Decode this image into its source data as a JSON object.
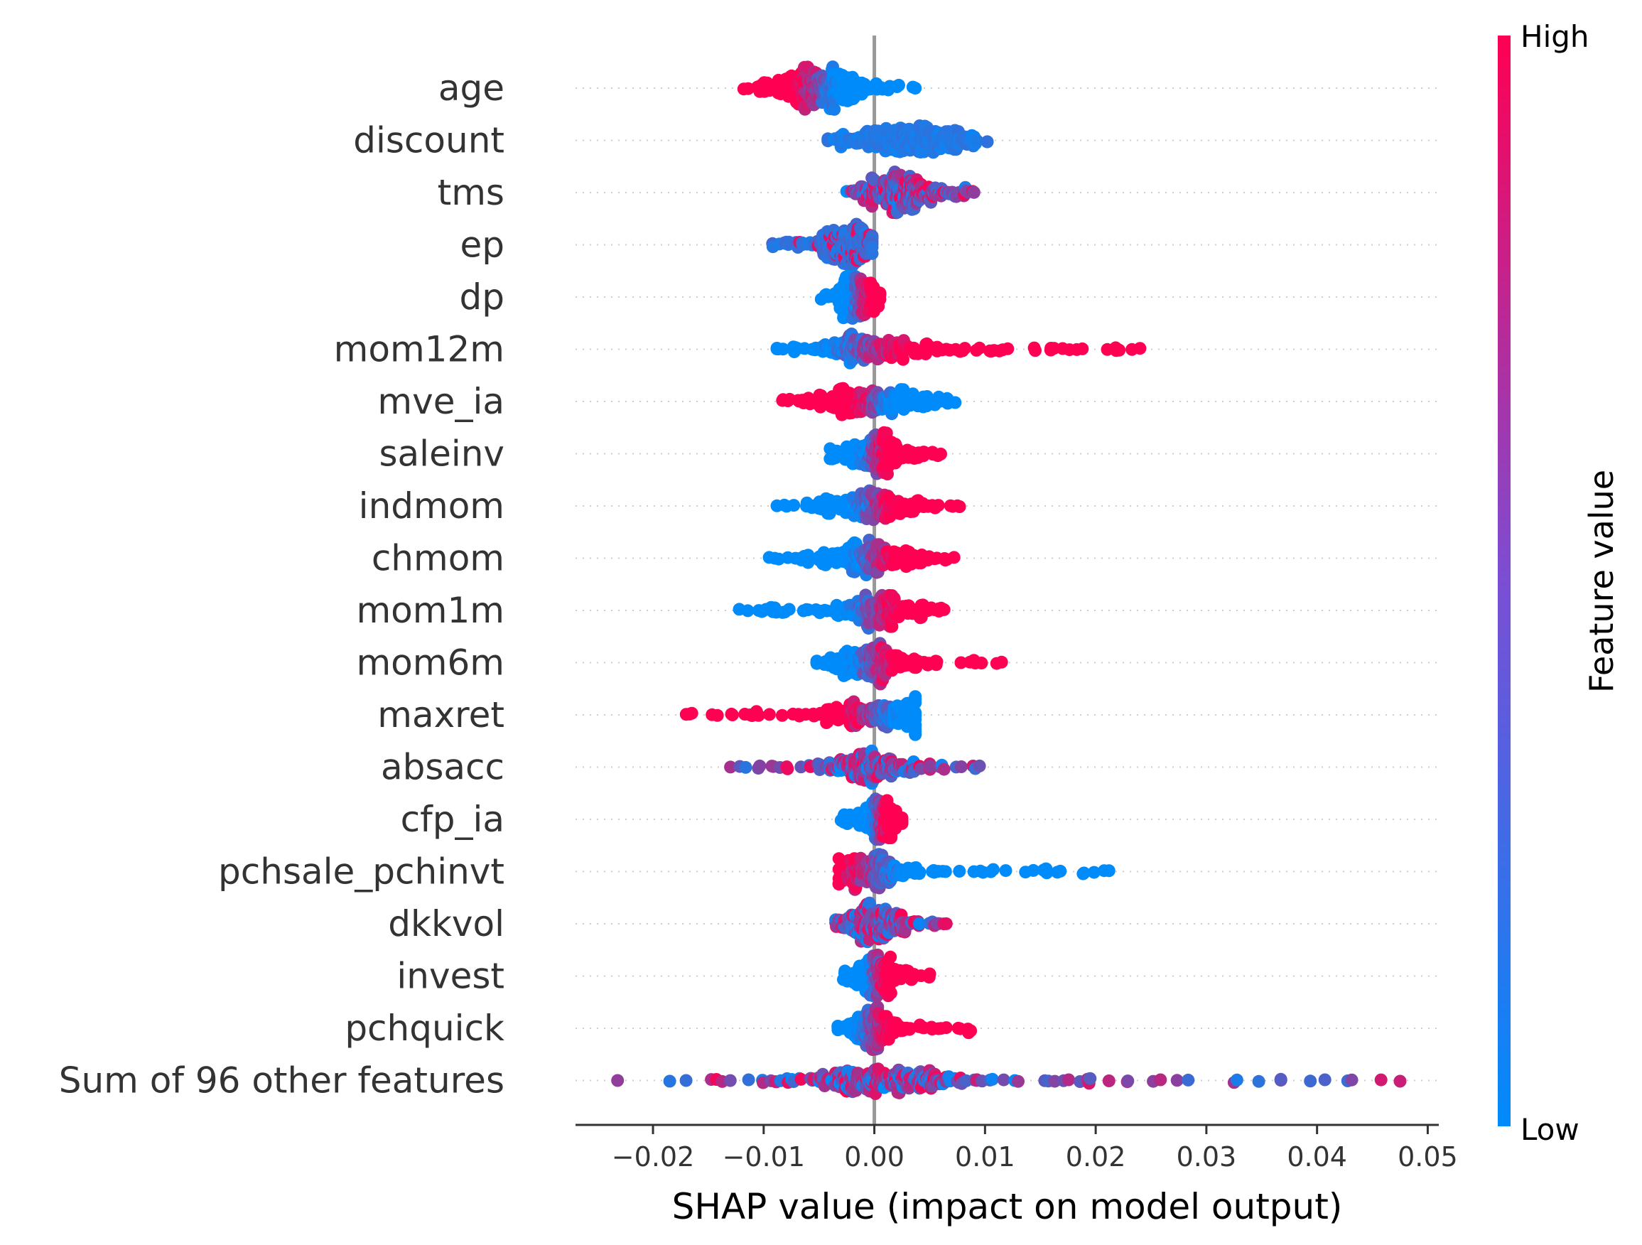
{
  "chart_data": {
    "type": "scatter",
    "subtype": "shap-beeswarm",
    "title": "",
    "xlabel": "SHAP value (impact on model output)",
    "xlim": [
      -0.027,
      0.051
    ],
    "xticks": [
      -0.02,
      -0.01,
      0.0,
      0.01,
      0.02,
      0.03,
      0.04,
      0.05
    ],
    "xtick_labels": [
      "−0.02",
      "−0.01",
      "0.00",
      "0.01",
      "0.02",
      "0.03",
      "0.04",
      "0.05"
    ],
    "zero_line": 0.0,
    "colorbar": {
      "title": "Feature value",
      "high_label": "High",
      "low_label": "Low",
      "low_color": "#008bfb",
      "high_color": "#ff0052"
    },
    "features": [
      {
        "name": "age",
        "min": -0.0118,
        "max": 0.0037,
        "center": -0.005,
        "spread": 0.0025,
        "hi_side": "left",
        "density": 1.0
      },
      {
        "name": "discount",
        "min": -0.0042,
        "max": 0.0102,
        "center": 0.0033,
        "spread": 0.0028,
        "hi_side": "none",
        "density": 0.9
      },
      {
        "name": "tms",
        "min": -0.0025,
        "max": 0.009,
        "center": 0.0025,
        "spread": 0.002,
        "hi_side": "mixed",
        "density": 0.85
      },
      {
        "name": "ep",
        "min": -0.0092,
        "max": -0.0002,
        "center": -0.0025,
        "spread": 0.0015,
        "hi_side": "mixed-few",
        "density": 0.7
      },
      {
        "name": "dp",
        "min": -0.0048,
        "max": 0.0005,
        "center": -0.0015,
        "spread": 0.001,
        "hi_side": "right-small",
        "density": 0.65
      },
      {
        "name": "mom12m",
        "min": -0.0088,
        "max": 0.024,
        "center": -0.0005,
        "spread": 0.003,
        "hi_side": "right",
        "density": 0.8
      },
      {
        "name": "mve_ia",
        "min": -0.0083,
        "max": 0.0073,
        "center": 0.0,
        "spread": 0.003,
        "hi_side": "left",
        "density": 0.8
      },
      {
        "name": "saleinv",
        "min": -0.004,
        "max": 0.006,
        "center": 0.0,
        "spread": 0.0018,
        "hi_side": "right",
        "density": 0.7
      },
      {
        "name": "indmom",
        "min": -0.0088,
        "max": 0.0077,
        "center": 0.0,
        "spread": 0.0025,
        "hi_side": "right",
        "density": 0.75
      },
      {
        "name": "chmom",
        "min": -0.0095,
        "max": 0.0072,
        "center": 0.0,
        "spread": 0.0025,
        "hi_side": "right",
        "density": 0.75
      },
      {
        "name": "mom1m",
        "min": -0.0122,
        "max": 0.0063,
        "center": 0.0,
        "spread": 0.0022,
        "hi_side": "right",
        "density": 0.7
      },
      {
        "name": "mom6m",
        "min": -0.0052,
        "max": 0.0115,
        "center": 0.0,
        "spread": 0.0025,
        "hi_side": "right",
        "density": 0.75
      },
      {
        "name": "maxret",
        "min": -0.017,
        "max": 0.0037,
        "center": 0.0,
        "spread": 0.003,
        "hi_side": "left",
        "density": 0.7
      },
      {
        "name": "absacc",
        "min": -0.013,
        "max": 0.0095,
        "center": -0.0005,
        "spread": 0.002,
        "hi_side": "mixed",
        "density": 0.65
      },
      {
        "name": "cfp_ia",
        "min": -0.003,
        "max": 0.0025,
        "center": 0.0005,
        "spread": 0.001,
        "hi_side": "right",
        "density": 0.55
      },
      {
        "name": "pchsale_pchinvt",
        "min": -0.0032,
        "max": 0.0212,
        "center": 0.0,
        "spread": 0.002,
        "hi_side": "left",
        "density": 0.7
      },
      {
        "name": "dkkvol",
        "min": -0.0035,
        "max": 0.0065,
        "center": 0.0,
        "spread": 0.0015,
        "hi_side": "mixed",
        "density": 0.65
      },
      {
        "name": "invest",
        "min": -0.0028,
        "max": 0.005,
        "center": 0.0003,
        "spread": 0.0012,
        "hi_side": "right",
        "density": 0.6
      },
      {
        "name": "pchquick",
        "min": -0.0033,
        "max": 0.0087,
        "center": 0.0,
        "spread": 0.0012,
        "hi_side": "right",
        "density": 0.6
      },
      {
        "name": "Sum of 96 other features",
        "min": -0.0232,
        "max": 0.0475,
        "center": 0.001,
        "spread": 0.004,
        "hi_side": "mixed",
        "density": 1.0
      }
    ]
  }
}
